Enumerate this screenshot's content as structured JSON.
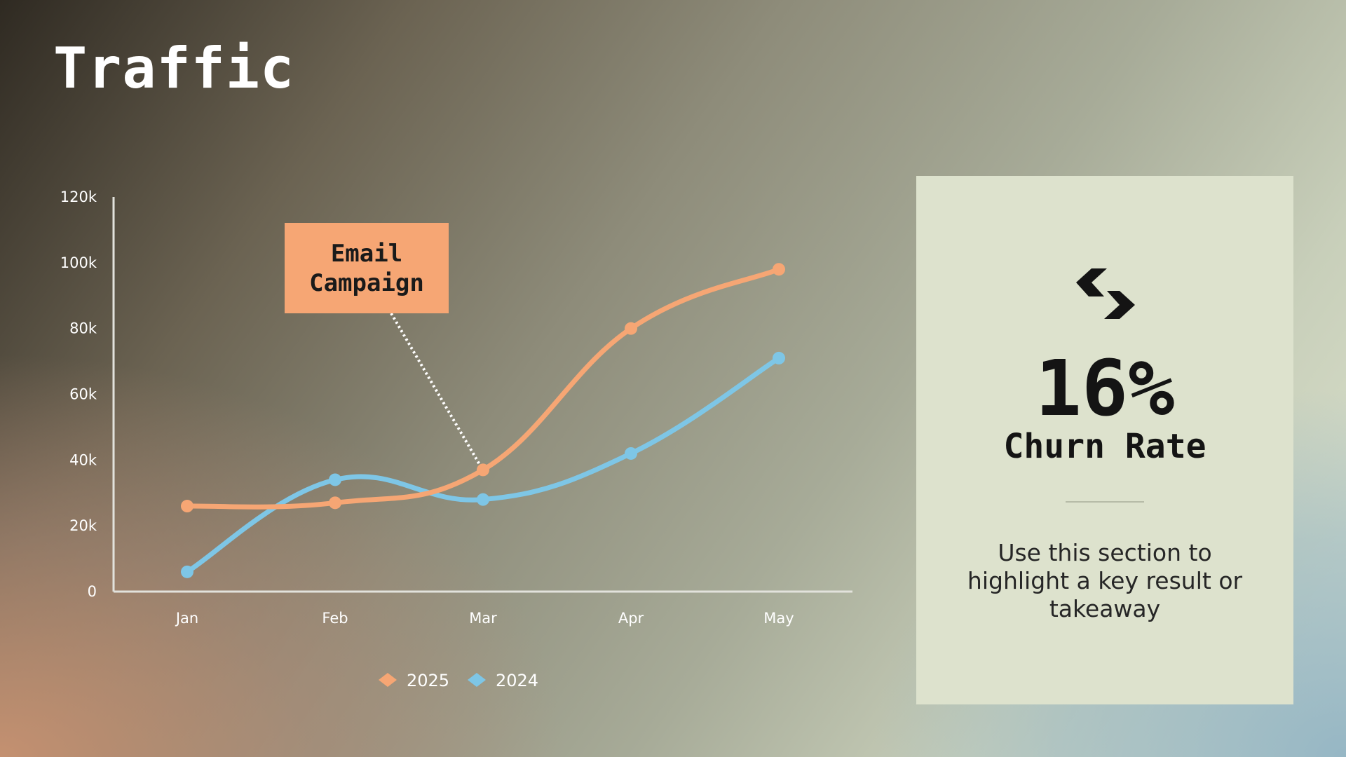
{
  "page": {
    "title": "Traffic"
  },
  "annotation": {
    "label": "Email Campaign",
    "points_to": "Mar"
  },
  "kpi": {
    "value": "16%",
    "label": "Churn Rate",
    "description": "Use this section to highlight a key result or takeaway",
    "icon": "chevrons-logo-icon"
  },
  "chart_data": {
    "type": "line",
    "categories": [
      "Jan",
      "Feb",
      "Mar",
      "Apr",
      "May"
    ],
    "series": [
      {
        "name": "2025",
        "values": [
          26000,
          27000,
          37000,
          80000,
          98000
        ],
        "color": "#f6a674"
      },
      {
        "name": "2024",
        "values": [
          6000,
          34000,
          28000,
          42000,
          71000
        ],
        "color": "#7ec6e6"
      }
    ],
    "ylim": [
      0,
      120000
    ],
    "yticks": [
      0,
      20000,
      40000,
      60000,
      80000,
      100000,
      120000
    ],
    "ytick_labels": [
      "0",
      "20k",
      "40k",
      "60k",
      "80k",
      "100k",
      "120k"
    ],
    "grid": false,
    "legend": "bottom-center",
    "smooth": true
  }
}
